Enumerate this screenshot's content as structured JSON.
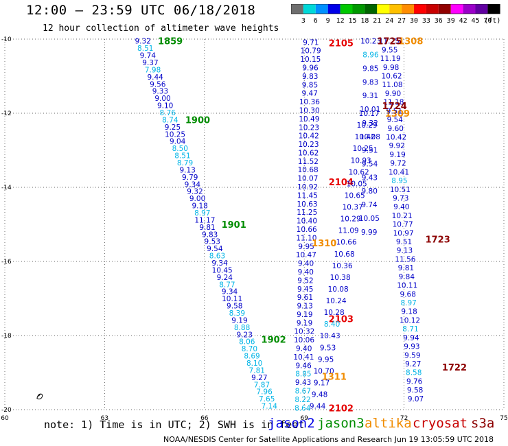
{
  "header": {
    "title": "12:00 – 23:59 UTC 06/18/2018",
    "subtitle": "12 hour collection of altimeter wave heights"
  },
  "colorbar": {
    "colors": [
      "#6e6e6e",
      "#00d8d8",
      "#0090ff",
      "#0000e8",
      "#00c800",
      "#009800",
      "#006400",
      "#ffff00",
      "#ffc000",
      "#ff8c00",
      "#ff0000",
      "#c80000",
      "#900000",
      "#ff00ff",
      "#9a00c8",
      "#6000a0",
      "#000000"
    ],
    "labels": [
      "3",
      "6",
      "9",
      "12",
      "15",
      "18",
      "21",
      "24",
      "27",
      "30",
      "33",
      "36",
      "39",
      "42",
      "45",
      "70",
      "(ft)"
    ]
  },
  "map": {
    "lon_range": [
      60,
      75
    ],
    "lat_range": [
      -20,
      -10
    ],
    "x_ticks": [
      {
        "lon": 60,
        "label": "60"
      },
      {
        "lon": 63,
        "label": "63"
      },
      {
        "lon": 66,
        "label": "66"
      },
      {
        "lon": 69,
        "label": "69"
      },
      {
        "lon": 72,
        "label": "72"
      },
      {
        "lon": 75,
        "label": "75"
      }
    ],
    "y_ticks": [
      {
        "lat": -10,
        "label": "-10"
      },
      {
        "lat": -12,
        "label": "-12"
      },
      {
        "lat": -14,
        "label": "-14"
      },
      {
        "lat": -16,
        "label": "-16"
      },
      {
        "lat": -18,
        "label": "-18"
      },
      {
        "lat": -20,
        "label": "-20"
      }
    ],
    "grid": "dotted",
    "island_glyph": "island-outline",
    "tracks": [
      {
        "satellite": "jason3",
        "color_dark": "#0000c8",
        "color_light": "#00b4e6",
        "time_color": "#008c00",
        "start": {
          "lon": 64.15,
          "lat": -10.05
        },
        "end": {
          "lon": 67.95,
          "lat": -19.9
        },
        "values": [
          "9.32",
          "8.51",
          "9.74",
          "9.37",
          "7.98",
          "9.44",
          "9.56",
          "9.33",
          "9.00",
          "9.10",
          "8.76",
          "8.74",
          "9.25",
          "10.25",
          "9.04",
          "8.50",
          "8.51",
          "8.79",
          "9.13",
          "9.79",
          "9.34",
          "9.32",
          "9.00",
          "9.18",
          "8.97",
          "11.17",
          "9.81",
          "9.83",
          "9.53",
          "9.54",
          "8.63",
          "9.34",
          "10.45",
          "9.24",
          "8.77",
          "9.34",
          "10.11",
          "9.58",
          "8.39",
          "9.19",
          "8.88",
          "9.23",
          "8.06",
          "8.70",
          "8.69",
          "8.10",
          "7.81",
          "9.27",
          "7.87",
          "7.96",
          "7.65",
          "7.14"
        ],
        "times": [
          {
            "label": "1859",
            "lat": -10.05
          },
          {
            "label": "1900",
            "lat": -12.18
          },
          {
            "label": "1901",
            "lat": -15.0
          },
          {
            "label": "1902",
            "lat": -18.1
          }
        ]
      },
      {
        "satellite": "jason2",
        "color_dark": "#0000c8",
        "color_light": "#00b4e6",
        "time_color": "#e60000",
        "start": {
          "lon": 69.2,
          "lat": -10.08
        },
        "end": {
          "lon": 68.95,
          "lat": -19.95
        },
        "values": [
          "9.71",
          "10.79",
          "10.15",
          "9.96",
          "9.83",
          "9.85",
          "9.47",
          "10.36",
          "10.30",
          "10.49",
          "10.23",
          "10.42",
          "10.23",
          "10.62",
          "11.52",
          "10.68",
          "10.07",
          "10.92",
          "11.45",
          "10.63",
          "11.25",
          "10.40",
          "10.66",
          "11.10",
          "9.95",
          "10.47",
          "9.40",
          "9.40",
          "9.52",
          "9.45",
          "9.61",
          "9.13",
          "9.19",
          "9.19",
          "10.32",
          "10.06",
          "9.40",
          "10.41",
          "9.46",
          "8.85",
          "9.43",
          "8.67",
          "8.22",
          "8.64"
        ],
        "times": [
          {
            "label": "2105",
            "lat": -10.1
          },
          {
            "label": "2104",
            "lat": -13.85
          },
          {
            "label": "2103",
            "lat": -17.55
          },
          {
            "label": "2102",
            "lat": -19.95
          }
        ]
      },
      {
        "satellite": "jason2-return",
        "color_dark": "#0000c8",
        "color_light": "#00b4e6",
        "time_color": "#e60000",
        "start": {
          "lon": 70.95,
          "lat": -12.0
        },
        "end": {
          "lon": 69.4,
          "lat": -19.9
        },
        "values": [
          "10.17",
          "10.29",
          "10.42",
          "10.25",
          "10.93",
          "10.62",
          "10.05",
          "10.65",
          "10.37",
          "10.29",
          "11.09",
          "10.66",
          "10.68",
          "10.36",
          "10.38",
          "10.08",
          "10.24",
          "10.28",
          "8.40",
          "10.43",
          "9.53",
          "9.95",
          "10.70",
          "9.17",
          "9.48",
          "9.44"
        ],
        "times": []
      },
      {
        "satellite": "altika",
        "color_dark": "#0000c8",
        "color_light": "#00b4e6",
        "time_color": "#f08c00",
        "start": {
          "lon": 71.0,
          "lat": -10.05
        },
        "end": {
          "lon": 70.95,
          "lat": -15.2
        },
        "values": [
          "10.23",
          "8.96",
          "9.85",
          "9.83",
          "9.31",
          "10.01",
          "9.32",
          "10.08",
          "9.51",
          "9.54",
          "9.43",
          "9.80",
          "9.74",
          "10.05",
          "9.99"
        ],
        "times": [
          {
            "label": "1308",
            "lat": -10.05
          },
          {
            "label": "1309",
            "lat": -12.0
          },
          {
            "label": "1310",
            "lat": -15.5
          },
          {
            "label": "1311",
            "lat": -19.1
          }
        ]
      },
      {
        "satellite": "cryosat",
        "color_dark": "#0000c8",
        "color_light": "#00b4e6",
        "time_color": "#8c0000",
        "start": {
          "lon": 71.55,
          "lat": -10.05
        },
        "end": {
          "lon": 72.35,
          "lat": -19.7
        },
        "values": [
          "11.25",
          "9.55",
          "11.19",
          "9.98",
          "10.62",
          "11.08",
          "9.90",
          "11.18",
          "9.51",
          "9.54",
          "9.60",
          "10.42",
          "9.92",
          "9.19",
          "9.72",
          "10.41",
          "8.95",
          "10.51",
          "9.73",
          "9.40",
          "10.21",
          "10.77",
          "10.97",
          "9.51",
          "9.13",
          "11.56",
          "9.81",
          "9.84",
          "10.11",
          "9.68",
          "8.97",
          "9.18",
          "10.12",
          "8.71",
          "9.94",
          "9.93",
          "9.59",
          "9.27",
          "8.58",
          "9.76",
          "9.58",
          "9.07"
        ],
        "times": [
          {
            "label": "1725",
            "lat": -10.05
          },
          {
            "label": "1724",
            "lat": -11.8
          },
          {
            "label": "1723",
            "lat": -15.4
          },
          {
            "label": "1722",
            "lat": -18.85
          }
        ]
      }
    ]
  },
  "footer": {
    "note": "note: 1) Time is in UTC; 2) SWH is in feet",
    "legend": [
      {
        "label": "jason2",
        "color": "#0000e6"
      },
      {
        "label": "jason3",
        "color": "#008c00"
      },
      {
        "label": "altika",
        "color": "#f08c00"
      },
      {
        "label": "cryosat",
        "color": "#c80000"
      },
      {
        "label": "s3a",
        "color": "#8c0000"
      }
    ],
    "credit": "NOAA/NESDIS Center for Satellite Applications and Research   Jun 19 13:05:59 UTC 2018"
  }
}
